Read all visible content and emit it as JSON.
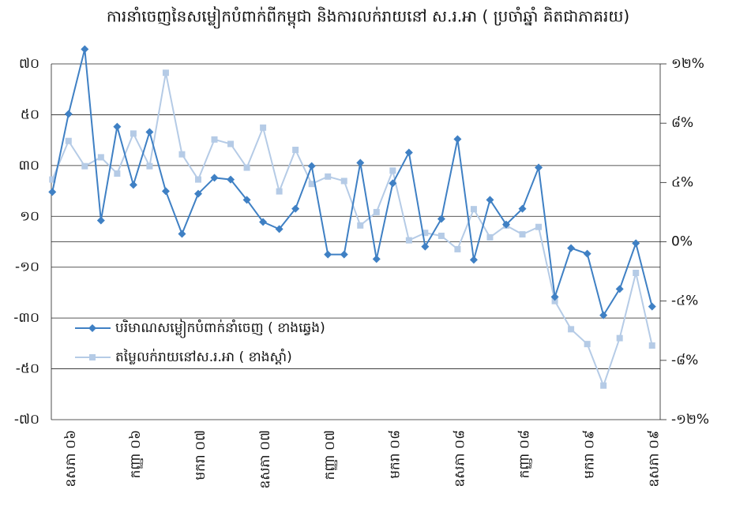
{
  "chart_data": {
    "type": "line",
    "title": "ការនាំចេញនៃសម្លៀកបំពាក់ពីកម្ពុជា និងការលក់រាយនៅ ស.រ.អា  ( ប្រចាំឆ្នាំ គិតជាភាគរយ)",
    "categories": [
      null,
      "ឧសភា ០៦",
      null,
      null,
      null,
      "កញ្ញា ០៦",
      null,
      null,
      null,
      "មករា ០៧",
      null,
      null,
      null,
      "ឧសភា ០៧",
      null,
      null,
      null,
      "កញ្ញា ០៧",
      null,
      null,
      null,
      "មករា ០៨",
      null,
      null,
      null,
      "ឧសភា ០៨",
      null,
      null,
      null,
      "កញ្ញា ០៨",
      null,
      null,
      null,
      "មករា ០៩",
      null,
      null,
      null,
      "ឧសភា ០៩"
    ],
    "series": [
      {
        "name": "បរិមាណសម្លៀកបំពាក់នាំចេញ ( ខាងឆ្វេង)",
        "color": "#3f80c4",
        "marker": "diamond",
        "values": [
          19.6,
          50.3,
          75.8,
          8.4,
          45.3,
          22.4,
          43.2,
          19.9,
          3.1,
          18.9,
          25.2,
          24.5,
          16.5,
          7.8,
          5.0,
          13.0,
          29.8,
          -5.0,
          -5.0,
          31.1,
          -6.8,
          23.0,
          35.1,
          -1.9,
          9.0,
          40.4,
          -7.1,
          16.5,
          6.8,
          13.0,
          29.2,
          -21.7,
          -2.5,
          -4.7,
          -28.9,
          -18.6,
          -0.6,
          -25.5
        ]
      },
      {
        "name": "តម្លៃលក់រាយនៅស.រ.អា ( ខាងស្តាំ)",
        "color": "#b5cbe6",
        "marker": "square",
        "axis": "y2",
        "values": [
          4.2,
          6.8,
          5.1,
          5.7,
          4.6,
          7.3,
          5.1,
          11.4,
          5.9,
          4.2,
          6.9,
          6.6,
          5.0,
          7.7,
          3.4,
          6.2,
          3.9,
          4.4,
          4.1,
          1.1,
          2.0,
          4.8,
          0.1,
          0.6,
          0.4,
          -0.5,
          2.2,
          0.3,
          1.1,
          0.5,
          1.0,
          -4.0,
          -5.9,
          -6.9,
          -9.7,
          -6.5,
          -2.1,
          -7.0
        ]
      }
    ],
    "ylim": [
      -70,
      70
    ],
    "yticks": [
      {
        "value": 70,
        "label": "៧០"
      },
      {
        "value": 50,
        "label": "៥០"
      },
      {
        "value": 30,
        "label": "៣០"
      },
      {
        "value": 10,
        "label": "១០"
      },
      {
        "value": -10,
        "label": "-១០"
      },
      {
        "value": -30,
        "label": "-៣០"
      },
      {
        "value": -50,
        "label": "-៥០"
      },
      {
        "value": -70,
        "label": "-៧០"
      }
    ],
    "y2lim": [
      -12,
      12
    ],
    "y2ticks": [
      {
        "value": 12,
        "label": "១២%"
      },
      {
        "value": 8,
        "label": "៨%"
      },
      {
        "value": 4,
        "label": "៤%"
      },
      {
        "value": 0,
        "label": "0%"
      },
      {
        "value": -4,
        "label": "-៤%"
      },
      {
        "value": -8,
        "label": "-៨%"
      },
      {
        "value": -12,
        "label": "-១២%"
      }
    ],
    "grid": true,
    "legend": "lower-left"
  }
}
